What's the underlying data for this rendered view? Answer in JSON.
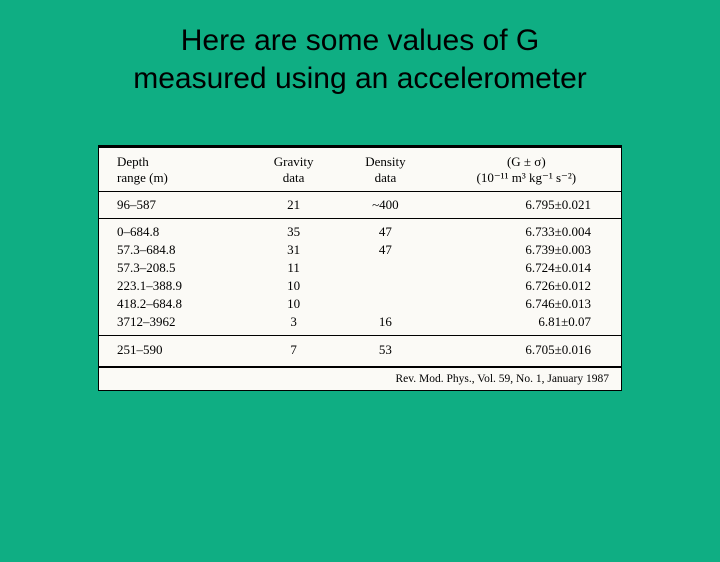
{
  "title_line1": "Here are some values of G",
  "title_line2": "measured using an accelerometer",
  "table": {
    "headers": {
      "depth_l1": "Depth",
      "depth_l2": "range (m)",
      "gravity_l1": "Gravity",
      "gravity_l2": "data",
      "density_l1": "Density",
      "density_l2": "data",
      "g_l1": "(G ± σ)",
      "g_l2": "(10⁻¹¹ m³ kg⁻¹ s⁻²)"
    },
    "row1": {
      "depth": "96–587",
      "gravity": "21",
      "density": "~400",
      "g": "6.795±0.021"
    },
    "row2": {
      "depth": "0–684.8",
      "gravity": "35",
      "density": "47",
      "g": "6.733±0.004"
    },
    "row3": {
      "depth": "57.3–684.8",
      "gravity": "31",
      "density": "47",
      "g": "6.739±0.003"
    },
    "row4": {
      "depth": "57.3–208.5",
      "gravity": "11",
      "density": "",
      "g": "6.724±0.014"
    },
    "row5": {
      "depth": "223.1–388.9",
      "gravity": "10",
      "density": "",
      "g": "6.726±0.012"
    },
    "row6": {
      "depth": "418.2–684.8",
      "gravity": "10",
      "density": "",
      "g": "6.746±0.013"
    },
    "row7": {
      "depth": "3712–3962",
      "gravity": "3",
      "density": "16",
      "g": "6.81±0.07"
    },
    "row8": {
      "depth": "251–590",
      "gravity": "7",
      "density": "53",
      "g": "6.705±0.016"
    }
  },
  "footer": "Rev. Mod. Phys., Vol. 59, No. 1, January 1987",
  "colors": {
    "background": "#0fae83",
    "table_bg": "#fbfaf6",
    "text": "#000000"
  }
}
